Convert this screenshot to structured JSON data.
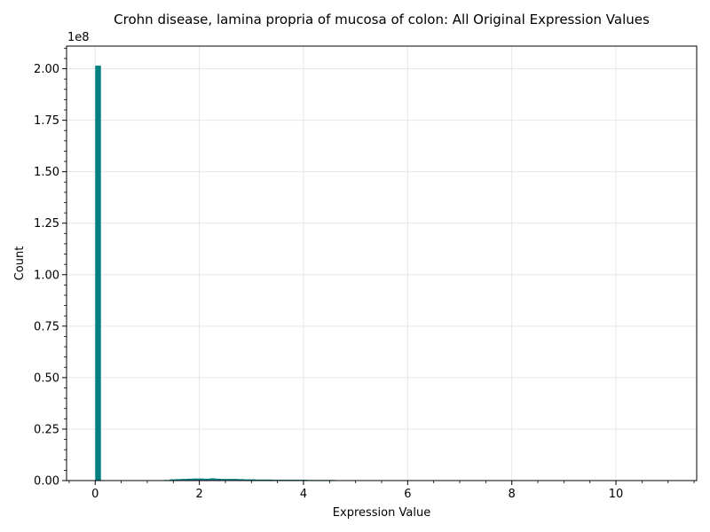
{
  "chart_data": {
    "type": "bar",
    "title": "Crohn disease, lamina propria of mucosa of colon: All Original Expression Values",
    "xlabel": "Expression Value",
    "ylabel": "Count",
    "y_offset_label": "1e8",
    "xlim": [
      -0.55,
      11.55
    ],
    "ylim": [
      0,
      2.11
    ],
    "y_scale_factor": 100000000,
    "grid": true,
    "color": "#008080",
    "x_ticks": [
      0,
      2,
      4,
      6,
      8,
      10
    ],
    "y_ticks": [
      0.0,
      0.25,
      0.5,
      0.75,
      1.0,
      1.25,
      1.5,
      1.75,
      2.0
    ],
    "x_tick_labels": [
      "0",
      "2",
      "4",
      "6",
      "8",
      "10"
    ],
    "y_tick_labels": [
      "0.00",
      "0.25",
      "0.50",
      "0.75",
      "1.00",
      "1.25",
      "1.50",
      "1.75",
      "2.00"
    ],
    "bin_width": 0.11,
    "bins": [
      {
        "x": 0.0,
        "value": 2.015
      },
      {
        "x": 1.21,
        "value": 0.002
      },
      {
        "x": 1.32,
        "value": 0.003
      },
      {
        "x": 1.43,
        "value": 0.006
      },
      {
        "x": 1.54,
        "value": 0.007
      },
      {
        "x": 1.65,
        "value": 0.008
      },
      {
        "x": 1.76,
        "value": 0.009
      },
      {
        "x": 1.87,
        "value": 0.01
      },
      {
        "x": 1.98,
        "value": 0.01
      },
      {
        "x": 2.09,
        "value": 0.009
      },
      {
        "x": 2.2,
        "value": 0.011
      },
      {
        "x": 2.31,
        "value": 0.009
      },
      {
        "x": 2.42,
        "value": 0.008
      },
      {
        "x": 2.53,
        "value": 0.008
      },
      {
        "x": 2.64,
        "value": 0.008
      },
      {
        "x": 2.75,
        "value": 0.007
      },
      {
        "x": 2.86,
        "value": 0.006
      },
      {
        "x": 2.97,
        "value": 0.006
      },
      {
        "x": 3.08,
        "value": 0.005
      },
      {
        "x": 3.19,
        "value": 0.005
      },
      {
        "x": 3.3,
        "value": 0.005
      },
      {
        "x": 3.41,
        "value": 0.004
      },
      {
        "x": 3.52,
        "value": 0.004
      },
      {
        "x": 3.63,
        "value": 0.004
      },
      {
        "x": 3.74,
        "value": 0.004
      },
      {
        "x": 3.85,
        "value": 0.004
      },
      {
        "x": 3.96,
        "value": 0.004
      },
      {
        "x": 4.07,
        "value": 0.003
      },
      {
        "x": 4.18,
        "value": 0.003
      },
      {
        "x": 4.29,
        "value": 0.003
      },
      {
        "x": 4.4,
        "value": 0.003
      },
      {
        "x": 4.51,
        "value": 0.003
      },
      {
        "x": 4.62,
        "value": 0.002
      },
      {
        "x": 4.73,
        "value": 0.002
      },
      {
        "x": 4.84,
        "value": 0.002
      },
      {
        "x": 4.95,
        "value": 0.002
      },
      {
        "x": 5.06,
        "value": 0.001
      },
      {
        "x": 5.17,
        "value": 0.001
      }
    ]
  }
}
